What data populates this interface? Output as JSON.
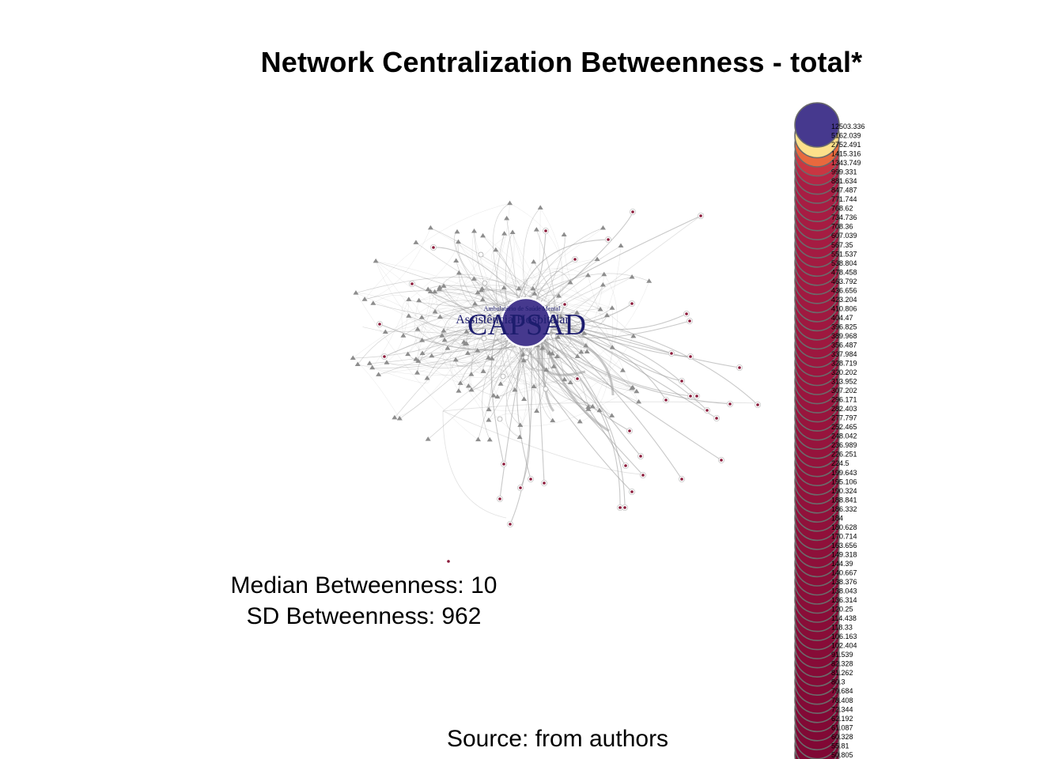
{
  "title": "Network Centralization Betweenness - total*",
  "stats": {
    "median": "Median Betweenness: 10",
    "sd": "SD Betweenness: 962"
  },
  "source": "Source: from authors",
  "graph": {
    "hub_label": "CAPSAD",
    "secondary_labels": [
      "Assistência Hospitalar",
      "Ambulatório de Saúde Mental"
    ],
    "colors": {
      "hub": "#46398e",
      "edge": "#9a9a9a",
      "peripheral_node": "#8b1a3a",
      "gray_node": "#8d8d8d",
      "label": "#1d1d6e"
    }
  },
  "legend": {
    "values": [
      "12503.336",
      "5162.039",
      "2752.491",
      "1415.316",
      "1343.749",
      "999.331",
      "881.634",
      "847.487",
      "771.744",
      "768.62",
      "734.736",
      "708.36",
      "607.039",
      "567.35",
      "551.537",
      "538.804",
      "478.458",
      "463.792",
      "436.656",
      "423.204",
      "410.806",
      "404.47",
      "396.825",
      "389.968",
      "356.487",
      "337.984",
      "328.719",
      "320.202",
      "313.952",
      "307.202",
      "296.171",
      "282.403",
      "277.797",
      "252.465",
      "248.042",
      "236.989",
      "226.251",
      "224.5",
      "199.643",
      "195.106",
      "190.324",
      "188.841",
      "186.332",
      "184",
      "180.628",
      "170.714",
      "163.656",
      "149.318",
      "144.39",
      "140.667",
      "138.376",
      "138.043",
      "136.314",
      "120.25",
      "114.438",
      "118.33",
      "106.163",
      "102.404",
      "91.539",
      "82.328",
      "81.262",
      "80.3",
      "79.684",
      "78.408",
      "72.344",
      "62.192",
      "61.087",
      "60.328",
      "55.81",
      "50.805"
    ],
    "colors": [
      "#46398e",
      "#fde08a",
      "#e8693d",
      "#c93642",
      "#b52545",
      "#a81d43"
    ]
  }
}
